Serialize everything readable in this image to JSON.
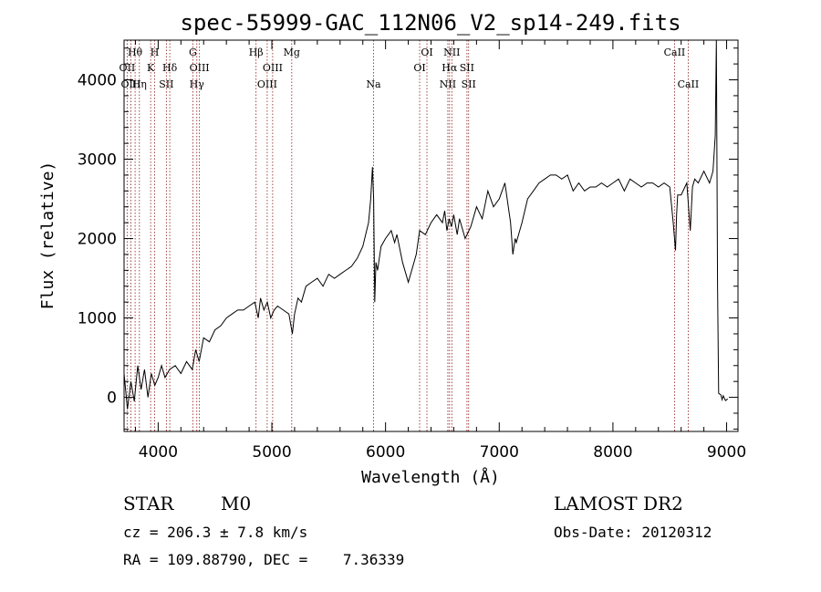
{
  "chart_data": {
    "type": "line",
    "title": "spec-55999-GAC_112N06_V2_sp14-249.fits",
    "xlabel": "Wavelength (Å)",
    "ylabel": "Flux (relative)",
    "xlim": [
      3700,
      9100
    ],
    "ylim": [
      -430,
      4500
    ],
    "xticks": [
      4000,
      5000,
      6000,
      7000,
      8000,
      9000
    ],
    "yticks": [
      0,
      1000,
      2000,
      3000,
      4000
    ],
    "grid": false,
    "series": [
      {
        "x": [
          3700,
          3730,
          3760,
          3790,
          3820,
          3850,
          3880,
          3910,
          3940,
          3970,
          4000,
          4030,
          4060,
          4100,
          4150,
          4200,
          4250,
          4300,
          4330,
          4360,
          4400,
          4450,
          4500,
          4550,
          4600,
          4650,
          4700,
          4750,
          4800,
          4850,
          4880,
          4900,
          4930,
          4960,
          4990,
          5020,
          5050,
          5100,
          5150,
          5180,
          5200,
          5230,
          5260,
          5300,
          5350,
          5400,
          5450,
          5500,
          5550,
          5600,
          5650,
          5700,
          5750,
          5800,
          5850,
          5870,
          5885,
          5895,
          5905,
          5915,
          5930,
          5960,
          6000,
          6050,
          6080,
          6100,
          6150,
          6200,
          6250,
          6270,
          6300,
          6350,
          6400,
          6450,
          6500,
          6520,
          6540,
          6560,
          6580,
          6600,
          6630,
          6650,
          6700,
          6750,
          6800,
          6850,
          6900,
          6950,
          7000,
          7050,
          7080,
          7100,
          7120,
          7140,
          7150,
          7200,
          7250,
          7300,
          7350,
          7400,
          7450,
          7500,
          7550,
          7600,
          7650,
          7700,
          7750,
          7800,
          7850,
          7900,
          7950,
          8000,
          8050,
          8100,
          8150,
          8200,
          8250,
          8300,
          8350,
          8400,
          8450,
          8500,
          8530,
          8550,
          8560,
          8570,
          8600,
          8650,
          8680,
          8700,
          8720,
          8750,
          8800,
          8850,
          8880,
          8900,
          8910,
          8920,
          8930,
          8950,
          8960,
          8970,
          8990,
          9010
        ],
        "y": [
          300,
          -150,
          200,
          -50,
          400,
          100,
          350,
          0,
          300,
          150,
          250,
          400,
          250,
          350,
          400,
          300,
          450,
          350,
          600,
          450,
          750,
          700,
          850,
          900,
          1000,
          1050,
          1100,
          1100,
          1150,
          1200,
          1000,
          1250,
          1100,
          1200,
          1000,
          1100,
          1150,
          1100,
          1050,
          800,
          1050,
          1250,
          1200,
          1400,
          1450,
          1500,
          1400,
          1550,
          1500,
          1550,
          1600,
          1650,
          1750,
          1900,
          2200,
          2500,
          2900,
          2500,
          1200,
          1700,
          1600,
          1900,
          2000,
          2100,
          1950,
          2050,
          1700,
          1450,
          1700,
          1800,
          2100,
          2050,
          2200,
          2300,
          2200,
          2350,
          2100,
          2250,
          2150,
          2300,
          2050,
          2250,
          2000,
          2150,
          2400,
          2250,
          2600,
          2400,
          2500,
          2700,
          2400,
          2200,
          1800,
          2000,
          1950,
          2200,
          2500,
          2600,
          2700,
          2750,
          2800,
          2800,
          2750,
          2800,
          2600,
          2700,
          2600,
          2650,
          2650,
          2700,
          2650,
          2700,
          2750,
          2600,
          2750,
          2700,
          2650,
          2700,
          2700,
          2650,
          2700,
          2650,
          2200,
          1850,
          2300,
          2550,
          2550,
          2700,
          2100,
          2650,
          2750,
          2700,
          2850,
          2700,
          2850,
          3300,
          4500,
          1400,
          50,
          30,
          -30,
          20,
          -40,
          -20
        ]
      }
    ],
    "lines": [
      {
        "label": "Hθ",
        "x": 3797,
        "row": 0
      },
      {
        "label": "OII",
        "x": 3727,
        "row": 1
      },
      {
        "label": "OIII",
        "x": 3760,
        "row": 2
      },
      {
        "label": "Hη",
        "x": 3835,
        "row": 2
      },
      {
        "label": "H",
        "x": 3969,
        "row": 0
      },
      {
        "label": "K",
        "x": 3934,
        "row": 1
      },
      {
        "label": "Hδ",
        "x": 4102,
        "row": 1
      },
      {
        "label": "SII",
        "x": 4072,
        "row": 2
      },
      {
        "label": "G",
        "x": 4305,
        "row": 0
      },
      {
        "label": "OIII",
        "x": 4363,
        "row": 1
      },
      {
        "label": "Hγ",
        "x": 4340,
        "row": 2
      },
      {
        "label": "Hβ",
        "x": 4861,
        "row": 0
      },
      {
        "label": "OIII",
        "x": 5007,
        "row": 1
      },
      {
        "label": "OIII",
        "x": 4959,
        "row": 2
      },
      {
        "label": "Mg",
        "x": 5175,
        "row": 0
      },
      {
        "label": "Na",
        "x": 5894,
        "row": 2
      },
      {
        "label": "OI",
        "x": 6364,
        "row": 0
      },
      {
        "label": "OI",
        "x": 6300,
        "row": 1
      },
      {
        "label": "NII",
        "x": 6583,
        "row": 0
      },
      {
        "label": "Hα",
        "x": 6563,
        "row": 1
      },
      {
        "label": "SII",
        "x": 6716,
        "row": 1
      },
      {
        "label": "NII",
        "x": 6548,
        "row": 2
      },
      {
        "label": "SII",
        "x": 6731,
        "row": 2
      },
      {
        "label": "CaII",
        "x": 8542,
        "row": 0
      },
      {
        "label": "CaII",
        "x": 8662,
        "row": 2
      }
    ],
    "colors": {
      "spectrum": "#000000",
      "lines": "#8b1a1a"
    }
  },
  "info": {
    "class": "STAR",
    "subclass": "M0",
    "survey": "LAMOST DR2",
    "cz": "cz = 206.3 ± 7.8 km/s",
    "obs_date": "Obs-Date: 20120312",
    "radec": "RA = 109.88790, DEC =    7.36339"
  }
}
